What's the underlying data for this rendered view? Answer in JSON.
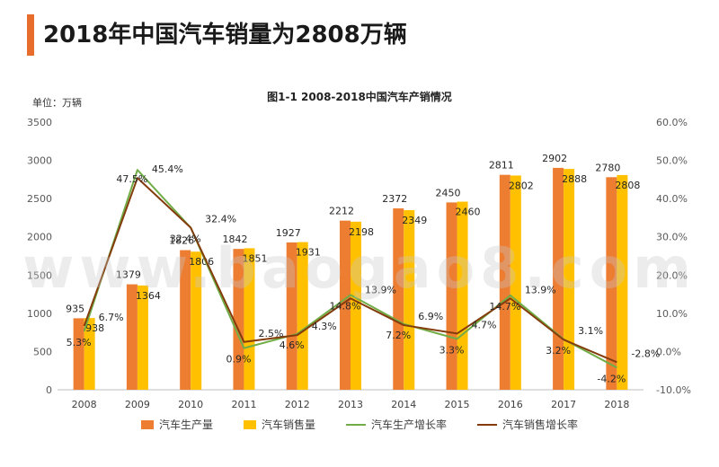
{
  "page": {
    "title": "2018年中国汽车销量为2808万辆",
    "accent_color": "#E86C2C",
    "watermark": "www.baogao8.com"
  },
  "chart_data": {
    "type": "bar",
    "title": "图1-1 2008-2018中国汽车产销情况",
    "unit_label": "单位：万辆",
    "categories": [
      "2008",
      "2009",
      "2010",
      "2011",
      "2012",
      "2013",
      "2014",
      "2015",
      "2016",
      "2017",
      "2018"
    ],
    "y_left": {
      "min": 0,
      "max": 3500,
      "ticks": [
        "0",
        "500",
        "1000",
        "1500",
        "2000",
        "2500",
        "3000",
        "3500"
      ]
    },
    "y_right": {
      "min": -10,
      "max": 60,
      "ticks": [
        "-10.0%",
        "0.0%",
        "10.0%",
        "20.0%",
        "30.0%",
        "40.0%",
        "50.0%",
        "60.0%"
      ]
    },
    "bar_series": [
      {
        "name": "汽车生产量",
        "color": "#ED7D31",
        "values": [
          935,
          1379,
          1826,
          1842,
          1927,
          2212,
          2372,
          2450,
          2811,
          2902,
          2780
        ],
        "labels": [
          "935",
          "1379",
          "1826",
          "1842",
          "1927",
          "2212",
          "2372",
          "2450",
          "2811",
          "2902",
          "2780"
        ]
      },
      {
        "name": "汽车销售量",
        "color": "#FFC000",
        "values": [
          938,
          1364,
          1806,
          1851,
          1931,
          2198,
          2349,
          2460,
          2802,
          2888,
          2808
        ],
        "labels": [
          "938",
          "1364",
          "1806",
          "1851",
          "1931",
          "2198",
          "2349",
          "2460",
          "2802",
          "2888",
          "2808"
        ]
      }
    ],
    "line_series": [
      {
        "name": "汽车生产增长率",
        "color": "#70AD47",
        "values": [
          5.3,
          47.5,
          32.4,
          0.9,
          4.6,
          14.8,
          7.2,
          3.3,
          14.7,
          3.2,
          -4.2
        ],
        "labels": [
          "5.3%",
          "47.5%",
          "32.4%",
          "0.9%",
          "4.6%",
          "14.8%",
          "7.2%",
          "3.3%",
          "14.7%",
          "3.2%",
          "-4.2%"
        ]
      },
      {
        "name": "汽车销售增长率",
        "color": "#843C0C",
        "values": [
          6.7,
          45.4,
          32.4,
          2.5,
          4.3,
          13.9,
          6.9,
          4.7,
          13.9,
          3.1,
          -2.8
        ],
        "labels": [
          "6.7%",
          "45.4%",
          "32.4%",
          "2.5%",
          "4.3%",
          "13.9%",
          "6.9%",
          "4.7%",
          "13.9%",
          "3.1%",
          "-2.8%"
        ]
      }
    ]
  }
}
